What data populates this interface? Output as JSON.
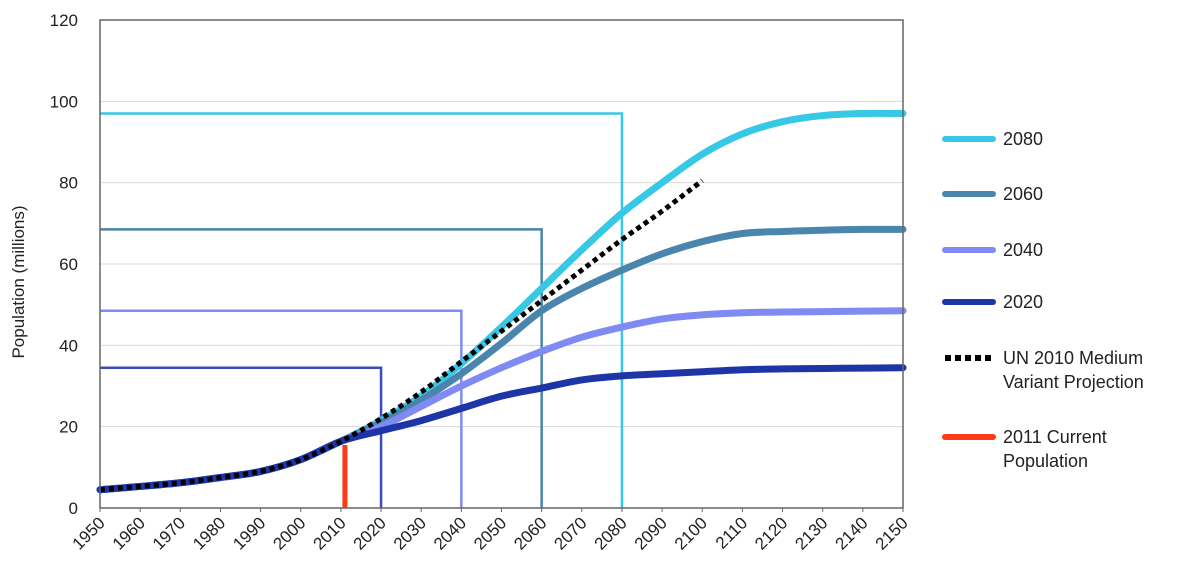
{
  "chart_data": {
    "type": "line",
    "ylabel": "Population (millions)",
    "xlabel": "",
    "ylim": [
      0,
      120
    ],
    "xlim": [
      1950,
      2150
    ],
    "yticks": [
      0,
      20,
      40,
      60,
      80,
      100,
      120
    ],
    "xticks": [
      1950,
      1960,
      1970,
      1980,
      1990,
      2000,
      2010,
      2020,
      2030,
      2040,
      2050,
      2060,
      2070,
      2080,
      2090,
      2100,
      2110,
      2120,
      2130,
      2140,
      2150
    ],
    "grid": "horizontal",
    "legend_position": "right",
    "series": [
      {
        "name": "2080",
        "color": "#37c8e6",
        "style": "solid",
        "x": [
          1950,
          1960,
          1970,
          1980,
          1990,
          2000,
          2010,
          2020,
          2030,
          2040,
          2050,
          2060,
          2070,
          2080,
          2090,
          2100,
          2110,
          2120,
          2130,
          2140,
          2150
        ],
        "y": [
          4.5,
          5.3,
          6.2,
          7.5,
          9.0,
          11.9,
          16.4,
          21.5,
          27.5,
          35.5,
          44.5,
          54.0,
          63.5,
          72.5,
          80.0,
          87.0,
          92.0,
          95.0,
          96.5,
          97.0,
          97.0
        ]
      },
      {
        "name": "2060",
        "color": "#4a85ad",
        "style": "solid",
        "x": [
          1950,
          1960,
          1970,
          1980,
          1990,
          2000,
          2010,
          2020,
          2030,
          2040,
          2050,
          2060,
          2070,
          2080,
          2090,
          2100,
          2110,
          2120,
          2130,
          2140,
          2150
        ],
        "y": [
          4.5,
          5.3,
          6.2,
          7.5,
          9.0,
          11.9,
          16.4,
          21.0,
          26.5,
          33.0,
          40.5,
          48.5,
          54.0,
          58.5,
          62.5,
          65.5,
          67.5,
          68.0,
          68.3,
          68.5,
          68.5
        ]
      },
      {
        "name": "2040",
        "color": "#7f8bf2",
        "style": "solid",
        "x": [
          1950,
          1960,
          1970,
          1980,
          1990,
          2000,
          2010,
          2020,
          2030,
          2040,
          2050,
          2060,
          2070,
          2080,
          2090,
          2100,
          2110,
          2120,
          2130,
          2140,
          2150
        ],
        "y": [
          4.5,
          5.3,
          6.2,
          7.5,
          9.0,
          11.9,
          16.4,
          20.0,
          25.0,
          30.0,
          34.5,
          38.5,
          42.0,
          44.5,
          46.5,
          47.5,
          48.0,
          48.2,
          48.3,
          48.4,
          48.5
        ]
      },
      {
        "name": "2020",
        "color": "#1e35a8",
        "style": "solid",
        "x": [
          1950,
          1960,
          1970,
          1980,
          1990,
          2000,
          2010,
          2020,
          2030,
          2040,
          2050,
          2060,
          2070,
          2080,
          2090,
          2100,
          2110,
          2120,
          2130,
          2140,
          2150
        ],
        "y": [
          4.5,
          5.3,
          6.2,
          7.5,
          9.0,
          11.9,
          16.4,
          19.0,
          21.5,
          24.5,
          27.5,
          29.5,
          31.5,
          32.5,
          33.0,
          33.5,
          34.0,
          34.2,
          34.3,
          34.4,
          34.5
        ]
      },
      {
        "name": "UN 2010 Medium Variant Projection",
        "color": "#000000",
        "style": "dotted",
        "x": [
          1950,
          1960,
          1970,
          1980,
          1990,
          2000,
          2010,
          2020,
          2030,
          2040,
          2050,
          2060,
          2070,
          2080,
          2090,
          2100
        ],
        "y": [
          4.5,
          5.3,
          6.2,
          7.5,
          9.0,
          11.9,
          16.4,
          22.0,
          28.5,
          36.0,
          43.5,
          51.0,
          58.5,
          66.0,
          73.0,
          80.5
        ]
      }
    ],
    "current_population": {
      "name": "2011 Current Population",
      "color": "#ff3b16",
      "x": 2011,
      "y": 15.5
    },
    "reference_boxes": [
      {
        "series": "2080",
        "x": 2080,
        "y": 97,
        "color": "#37c8e6"
      },
      {
        "series": "2060",
        "x": 2060,
        "y": 68.5,
        "color": "#4a85ad"
      },
      {
        "series": "2040",
        "x": 2040,
        "y": 48.5,
        "color": "#7f8bf2"
      },
      {
        "series": "2020",
        "x": 2020,
        "y": 34.5,
        "color": "#3b4bb5"
      }
    ],
    "legend": [
      {
        "lines": [
          "2080"
        ],
        "color": "#37c8e6",
        "style": "solid"
      },
      {
        "lines": [
          "2060"
        ],
        "color": "#4a85ad",
        "style": "solid"
      },
      {
        "lines": [
          "2040"
        ],
        "color": "#7f8bf2",
        "style": "solid"
      },
      {
        "lines": [
          "2020"
        ],
        "color": "#1e35a8",
        "style": "solid"
      },
      {
        "lines": [
          "UN 2010 Medium",
          "Variant Projection"
        ],
        "color": "#000000",
        "style": "dotted"
      },
      {
        "lines": [
          "2011 Current",
          "Population"
        ],
        "color": "#ff3b16",
        "style": "solid"
      }
    ]
  }
}
